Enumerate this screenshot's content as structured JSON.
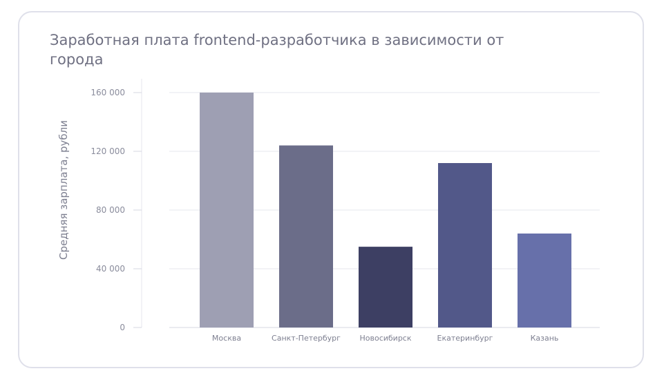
{
  "chart_data": {
    "type": "bar",
    "title": "Заработная плата frontend-разработчика в зависимости от города",
    "xlabel": "",
    "ylabel": "Средняя зарплата, рубли",
    "categories": [
      "Москва",
      "Санкт-Петербург",
      "Новосибирск",
      "Екатеринбург",
      "Казань"
    ],
    "values": [
      160000,
      124000,
      55000,
      112000,
      64000
    ],
    "ylim": [
      0,
      160000
    ],
    "yticks": [
      0,
      40000,
      80000,
      120000,
      160000
    ],
    "ytick_labels": [
      "0",
      "40 000",
      "80 000",
      "120 000",
      "160 000"
    ],
    "grid": true,
    "legend": "none",
    "colors": [
      "#9e9fb3",
      "#6b6d89",
      "#3d3f63",
      "#525889",
      "#6770aa"
    ]
  }
}
